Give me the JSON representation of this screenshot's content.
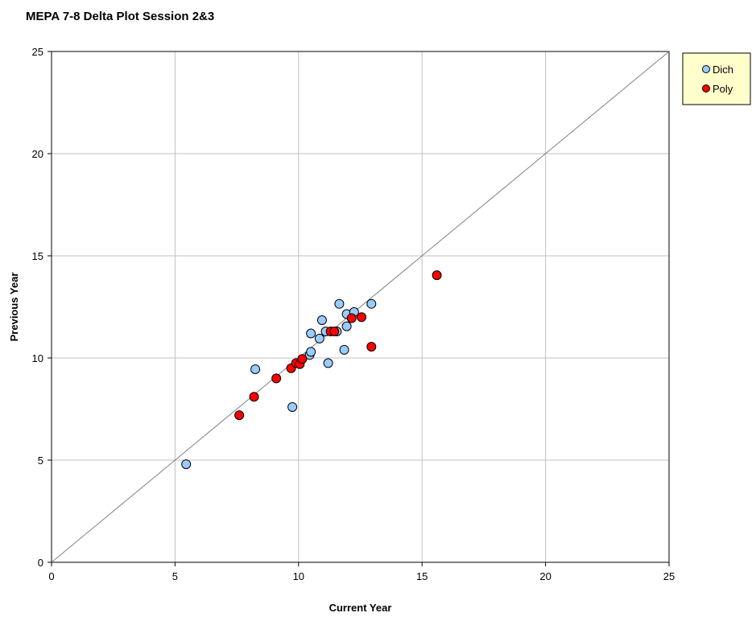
{
  "chart_data": {
    "type": "scatter",
    "title": "MEPA 7-8 Delta Plot Session 2&3",
    "xlabel": "Current Year",
    "ylabel": "Previous Year",
    "xlim": [
      0,
      25
    ],
    "ylim": [
      0,
      25
    ],
    "xticks": [
      "0",
      "5",
      "10",
      "15",
      "20",
      "25"
    ],
    "yticks": [
      "0",
      "5",
      "10",
      "15",
      "20",
      "25"
    ],
    "grid": true,
    "reference_line": "identity",
    "legend_position": "top-right",
    "series": [
      {
        "name": "Dich",
        "color": "#99ccff",
        "points": [
          [
            5.45,
            4.8
          ],
          [
            8.25,
            9.45
          ],
          [
            9.75,
            7.6
          ],
          [
            10.5,
            11.2
          ],
          [
            10.45,
            10.15
          ],
          [
            10.5,
            10.3
          ],
          [
            10.85,
            10.95
          ],
          [
            10.95,
            11.85
          ],
          [
            11.1,
            11.3
          ],
          [
            11.2,
            9.75
          ],
          [
            11.55,
            11.3
          ],
          [
            11.65,
            12.65
          ],
          [
            11.85,
            10.4
          ],
          [
            11.95,
            11.55
          ],
          [
            11.95,
            12.15
          ],
          [
            12.25,
            12.25
          ],
          [
            12.95,
            12.65
          ]
        ]
      },
      {
        "name": "Poly",
        "color": "#ff0000",
        "points": [
          [
            7.6,
            7.2
          ],
          [
            8.2,
            8.1
          ],
          [
            9.1,
            9.0
          ],
          [
            9.7,
            9.5
          ],
          [
            9.9,
            9.75
          ],
          [
            10.05,
            9.7
          ],
          [
            10.15,
            9.95
          ],
          [
            11.3,
            11.3
          ],
          [
            11.45,
            11.3
          ],
          [
            12.15,
            11.95
          ],
          [
            12.55,
            12.0
          ],
          [
            12.95,
            10.55
          ],
          [
            15.6,
            14.05
          ]
        ]
      }
    ]
  }
}
